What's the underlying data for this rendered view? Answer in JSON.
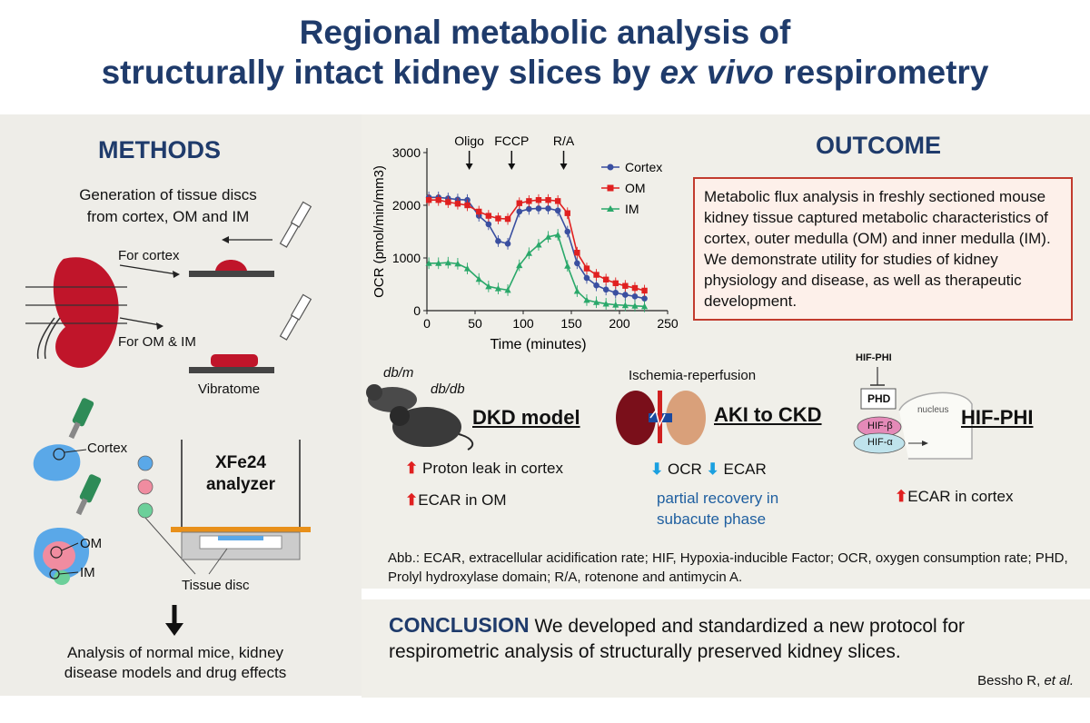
{
  "title": {
    "line1": "Regional metabolic analysis of",
    "line2a": "structurally intact kidney slices by ",
    "line2b": "ex vivo",
    "line2c": " respirometry"
  },
  "methods": {
    "heading": "METHODS",
    "gen_line1": "Generation of tissue discs",
    "gen_line2": "from cortex, OM and IM",
    "for_cortex": "For cortex",
    "for_om_im": "For OM & IM",
    "vibratome": "Vibratome",
    "cortex": "Cortex",
    "om": "OM",
    "im": "IM",
    "analyzer_line1": "XFe24",
    "analyzer_line2": "analyzer",
    "tissue_disc": "Tissue disc",
    "analysis_line1": "Analysis of normal mice, kidney",
    "analysis_line2": "disease models and drug effects"
  },
  "outcome": {
    "heading": "OUTCOME",
    "box_text": "Metabolic flux analysis in freshly sectioned mouse kidney tissue captured metabolic characteristics of cortex, outer medulla (OM) and inner medulla (IM). We demonstrate utility for studies of kidney physiology and disease, as well as therapeutic development."
  },
  "chart_data": {
    "type": "line",
    "xlabel": "Time (minutes)",
    "ylabel": "OCR (pmol/min/mm3)",
    "xlim": [
      0,
      250
    ],
    "ylim": [
      0,
      3000
    ],
    "xticks": [
      "0",
      "50",
      "100",
      "150",
      "200",
      "250"
    ],
    "yticks": [
      "0",
      "1000",
      "2000",
      "3000"
    ],
    "annotations": [
      "Oligo",
      "FCCP",
      "R/A"
    ],
    "annotation_x": [
      44,
      88,
      142
    ],
    "x": [
      2,
      12,
      22,
      32,
      42,
      54,
      64,
      74,
      84,
      96,
      106,
      116,
      126,
      136,
      146,
      156,
      166,
      176,
      186,
      196,
      206,
      216,
      226
    ],
    "series": [
      {
        "name": "Cortex",
        "color": "#3a4fa0",
        "marker": "circle",
        "values": [
          2150,
          2150,
          2130,
          2110,
          2100,
          1800,
          1640,
          1320,
          1270,
          1880,
          1930,
          1940,
          1940,
          1900,
          1500,
          900,
          620,
          480,
          400,
          340,
          300,
          270,
          230
        ]
      },
      {
        "name": "OM",
        "color": "#e02020",
        "marker": "square",
        "values": [
          2100,
          2100,
          2060,
          2030,
          2000,
          1880,
          1800,
          1750,
          1740,
          2040,
          2080,
          2100,
          2100,
          2080,
          1850,
          1100,
          800,
          680,
          590,
          520,
          470,
          430,
          380
        ]
      },
      {
        "name": "IM",
        "color": "#2aa86a",
        "marker": "triangle",
        "values": [
          900,
          900,
          910,
          890,
          800,
          600,
          460,
          420,
          390,
          860,
          1090,
          1250,
          1400,
          1440,
          850,
          370,
          200,
          160,
          130,
          110,
          100,
          90,
          80
        ]
      }
    ]
  },
  "dkd": {
    "dbm": "db/m",
    "dbdb": "db/db",
    "title": "DKD model",
    "line1": "Proton leak in cortex",
    "line2": "ECAR in OM"
  },
  "aki": {
    "ischemia": "Ischemia-reperfusion",
    "title": "AKI to CKD",
    "ocr": "OCR",
    "ecar": "ECAR",
    "recovery1": "partial recovery in",
    "recovery2": "subacute phase"
  },
  "hif": {
    "hif_phi_small": "HIF-PHI",
    "phd": "PHD",
    "nucleus": "nucleus",
    "hif_b": "HIF-β",
    "hif_a": "HIF-α",
    "title": "HIF-PHI",
    "line1": "ECAR in cortex"
  },
  "arrows": {
    "up": "⬆",
    "down": "⬇"
  },
  "abb": "Abb.: ECAR, extracellular acidification rate; HIF, Hypoxia-inducible Factor; OCR, oxygen consumption rate; PHD, Prolyl hydroxylase domain; R/A, rotenone and antimycin A.",
  "conclusion": {
    "heading": "CONCLUSION",
    "text": " We developed and standardized a new protocol for respirometric analysis of structurally preserved kidney slices."
  },
  "author": {
    "name": "Bessho R, ",
    "etal": "et al."
  }
}
